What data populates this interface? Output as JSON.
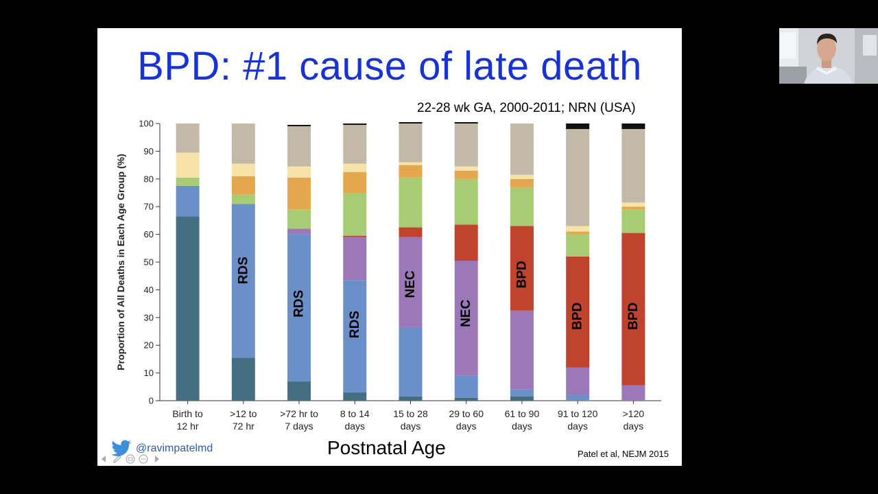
{
  "slide": {
    "title": "BPD: #1 cause of late death",
    "subtitle": "22-28 wk GA, 2000-2011; NRN (USA)",
    "x_axis_title": "Postnatal Age",
    "citation": "Patel et al, NEJM  2015",
    "twitter_handle": "@ravimpatelmd"
  },
  "colors": {
    "dark_teal": "#456e82",
    "blue": "#6b8fc8",
    "purple": "#9d78b8",
    "red": "#c0432e",
    "green": "#a8cc73",
    "orange": "#e4a74e",
    "light_yellow": "#f7e2a8",
    "gray": "#c2b9a9",
    "black": "#111111",
    "title_blue": "#1733d6"
  },
  "chart_data": {
    "type": "bar",
    "stacked": true,
    "ylabel": "Proportion of All Deaths in Each Age Group (%)",
    "ylim": [
      0,
      100
    ],
    "yticks": [
      0,
      10,
      20,
      30,
      40,
      50,
      60,
      70,
      80,
      90,
      100
    ],
    "categories": [
      [
        "Birth to",
        "12 hr"
      ],
      [
        ">12 to",
        "72 hr"
      ],
      [
        ">72 hr to",
        "7 days"
      ],
      [
        "8 to 14",
        "days"
      ],
      [
        "15 to 28",
        "days"
      ],
      [
        "29 to 60",
        "days"
      ],
      [
        "61 to 90",
        "days"
      ],
      [
        "91 to 120",
        "days"
      ],
      [
        ">120",
        "days"
      ]
    ],
    "series": [
      {
        "color": "#456e82",
        "values": [
          66.5,
          15.5,
          7,
          3,
          1.5,
          1,
          1.5,
          0,
          0
        ]
      },
      {
        "color": "#6b8fc8",
        "values": [
          11,
          55.5,
          53,
          40.5,
          25,
          8,
          2.5,
          2,
          0
        ]
      },
      {
        "color": "#9d78b8",
        "values": [
          0,
          0,
          2,
          15.5,
          32.5,
          41.5,
          28.5,
          10,
          5.5
        ]
      },
      {
        "color": "#c0432e",
        "values": [
          0,
          0,
          0,
          0.5,
          3.5,
          13,
          30.5,
          40,
          55
        ]
      },
      {
        "color": "#a8cc73",
        "values": [
          3,
          3.5,
          7,
          15.5,
          18,
          16.5,
          14,
          8,
          8.5
        ]
      },
      {
        "color": "#e4a74e",
        "values": [
          0,
          6.5,
          11.5,
          7.5,
          4.5,
          3,
          3,
          1,
          1
        ]
      },
      {
        "color": "#f7e2a8",
        "values": [
          9,
          4.5,
          4,
          3,
          1,
          1.5,
          1.5,
          2,
          1.5
        ]
      },
      {
        "color": "#c2b9a9",
        "values": [
          10.5,
          14.5,
          14.5,
          14,
          14,
          15.5,
          18.5,
          35,
          26.5
        ]
      },
      {
        "color": "#111111",
        "values": [
          0,
          0,
          0.5,
          0.5,
          0.5,
          0.5,
          0,
          2,
          2
        ]
      }
    ],
    "annotations": [
      {
        "text": "RDS",
        "category_index": 1,
        "y": 47
      },
      {
        "text": "RDS",
        "category_index": 2,
        "y": 35
      },
      {
        "text": "RDS",
        "category_index": 3,
        "y": 27.5
      },
      {
        "text": "NEC",
        "category_index": 4,
        "y": 42
      },
      {
        "text": "NEC",
        "category_index": 5,
        "y": 31.5
      },
      {
        "text": "BPD",
        "category_index": 6,
        "y": 45.5
      },
      {
        "text": "BPD",
        "category_index": 7,
        "y": 30.5
      },
      {
        "text": "BPD",
        "category_index": 8,
        "y": 30.5
      }
    ]
  }
}
